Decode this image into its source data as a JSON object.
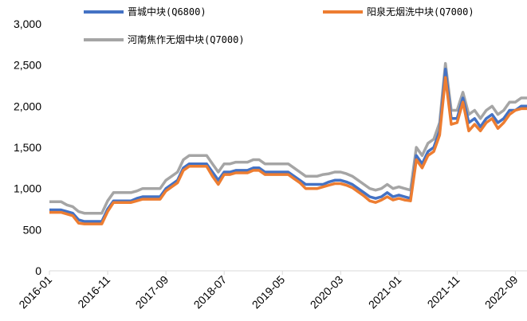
{
  "chart_data": {
    "type": "line",
    "categories": [
      "2016-01",
      "2016-02",
      "2016-03",
      "2016-04",
      "2016-05",
      "2016-06",
      "2016-07",
      "2016-08",
      "2016-09",
      "2016-10",
      "2016-11",
      "2016-12",
      "2017-01",
      "2017-02",
      "2017-03",
      "2017-04",
      "2017-05",
      "2017-06",
      "2017-07",
      "2017-08",
      "2017-09",
      "2017-10",
      "2017-11",
      "2017-12",
      "2018-01",
      "2018-02",
      "2018-03",
      "2018-04",
      "2018-05",
      "2018-06",
      "2018-07",
      "2018-08",
      "2018-09",
      "2018-10",
      "2018-11",
      "2018-12",
      "2019-01",
      "2019-02",
      "2019-03",
      "2019-04",
      "2019-05",
      "2019-06",
      "2019-07",
      "2019-08",
      "2019-09",
      "2019-10",
      "2019-11",
      "2019-12",
      "2020-01",
      "2020-02",
      "2020-03",
      "2020-04",
      "2020-05",
      "2020-06",
      "2020-07",
      "2020-08",
      "2020-09",
      "2020-10",
      "2020-11",
      "2020-12",
      "2021-01",
      "2021-02",
      "2021-03",
      "2021-04",
      "2021-05",
      "2021-06",
      "2021-07",
      "2021-08",
      "2021-09",
      "2021-10",
      "2021-11",
      "2021-12",
      "2022-01",
      "2022-02",
      "2022-03",
      "2022-04",
      "2022-05",
      "2022-06",
      "2022-07",
      "2022-08",
      "2022-09",
      "2022-10",
      "2022-11"
    ],
    "xticks": [
      "2016-01",
      "2016-11",
      "2017-09",
      "2018-07",
      "2019-05",
      "2020-03",
      "2021-01",
      "2021-11",
      "2022-09"
    ],
    "series": [
      {
        "name": "晋城中块(Q6800)",
        "color": "#4472c4",
        "values": [
          740,
          740,
          740,
          720,
          700,
          620,
          600,
          600,
          600,
          600,
          750,
          850,
          850,
          850,
          850,
          880,
          900,
          900,
          900,
          900,
          1000,
          1050,
          1100,
          1250,
          1300,
          1300,
          1300,
          1300,
          1200,
          1100,
          1200,
          1200,
          1220,
          1220,
          1220,
          1250,
          1250,
          1200,
          1200,
          1200,
          1200,
          1200,
          1150,
          1100,
          1050,
          1050,
          1050,
          1050,
          1080,
          1100,
          1100,
          1080,
          1050,
          1000,
          950,
          900,
          880,
          900,
          950,
          900,
          920,
          900,
          880,
          1400,
          1300,
          1450,
          1500,
          1700,
          2450,
          1850,
          1850,
          2100,
          1800,
          1850,
          1750,
          1850,
          1900,
          1800,
          1850,
          1950,
          1950,
          2000,
          2000
        ]
      },
      {
        "name": "阳泉无烟洗中块(Q7000)",
        "color": "#ed7d31",
        "values": [
          710,
          710,
          710,
          690,
          670,
          580,
          570,
          570,
          570,
          570,
          720,
          830,
          830,
          830,
          830,
          850,
          870,
          870,
          870,
          870,
          970,
          1020,
          1070,
          1220,
          1270,
          1270,
          1270,
          1270,
          1150,
          1050,
          1170,
          1170,
          1190,
          1190,
          1190,
          1220,
          1220,
          1170,
          1170,
          1170,
          1170,
          1170,
          1120,
          1070,
          1000,
          1000,
          1000,
          1020,
          1040,
          1060,
          1060,
          1040,
          1010,
          960,
          910,
          850,
          830,
          860,
          900,
          860,
          880,
          860,
          850,
          1350,
          1250,
          1400,
          1450,
          1650,
          2350,
          1780,
          1800,
          2050,
          1700,
          1780,
          1700,
          1800,
          1850,
          1730,
          1800,
          1900,
          1950,
          1970,
          1970
        ]
      },
      {
        "name": "河南焦作无烟中块(Q7000)",
        "color": "#a5a5a5",
        "values": [
          840,
          840,
          840,
          800,
          780,
          720,
          700,
          700,
          700,
          700,
          850,
          950,
          950,
          950,
          950,
          970,
          1000,
          1000,
          1000,
          1000,
          1100,
          1150,
          1200,
          1350,
          1400,
          1400,
          1400,
          1400,
          1300,
          1200,
          1300,
          1300,
          1320,
          1320,
          1320,
          1350,
          1350,
          1300,
          1300,
          1300,
          1300,
          1300,
          1250,
          1200,
          1150,
          1150,
          1150,
          1170,
          1180,
          1200,
          1200,
          1180,
          1150,
          1100,
          1050,
          1000,
          980,
          1000,
          1050,
          1000,
          1020,
          1000,
          980,
          1500,
          1400,
          1550,
          1600,
          1800,
          2520,
          1950,
          1950,
          2170,
          1900,
          1950,
          1850,
          1950,
          2000,
          1900,
          1950,
          2050,
          2050,
          2100,
          2100
        ]
      }
    ],
    "ylim": [
      0,
      3000
    ],
    "yticks": [
      0,
      500,
      {
        "value": 1000,
        "label": "1,000"
      },
      {
        "value": 1500,
        "label": "1,500"
      },
      {
        "value": 2000,
        "label": "2,000"
      },
      {
        "value": 2500,
        "label": "2,500"
      },
      {
        "value": 3000,
        "label": "3,000"
      }
    ],
    "legend": "top"
  }
}
